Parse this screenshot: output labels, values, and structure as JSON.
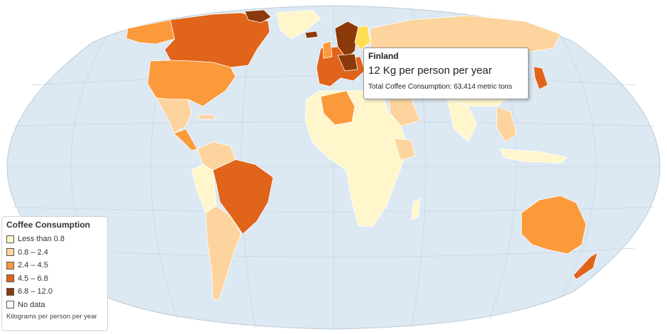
{
  "colors": {
    "ocean": "#dce8f2",
    "grid": "#c6d6e4",
    "less_than_0_8": "#fff6cc",
    "c_0_8_2_4": "#fdd49e",
    "c_2_4_4_5": "#fb9a3a",
    "c_4_5_6_8": "#e0641a",
    "c_6_8_12": "#8c3a0a",
    "highlight": "#ffdd55"
  },
  "legend": {
    "title": "Coffee Consumption",
    "items": [
      {
        "label": "Less than 0.8",
        "color": "#fff6cc"
      },
      {
        "label": "0.8 – 2.4",
        "color": "#fdd49e"
      },
      {
        "label": "2.4 – 4.5",
        "color": "#fb9a3a"
      },
      {
        "label": "4.5 – 6.8",
        "color": "#e0641a"
      },
      {
        "label": "6.8 – 12.0",
        "color": "#8c3a0a"
      },
      {
        "label": "No data",
        "color": "#ffffff"
      }
    ],
    "note": "Kilograms per person per year"
  },
  "tooltip": {
    "country": "Finland",
    "value_text": "12 Kg per person per year",
    "total_text": "Total Coffee Consumption: 63,414 metric tons"
  },
  "regions": [
    {
      "name": "Canada",
      "bin": 3
    },
    {
      "name": "United States",
      "bin": 2
    },
    {
      "name": "Greenland",
      "bin": 0
    },
    {
      "name": "Mexico",
      "bin": 1
    },
    {
      "name": "Brazil",
      "bin": 3
    },
    {
      "name": "Russia",
      "bin": 1
    },
    {
      "name": "Finland",
      "bin": 4
    },
    {
      "name": "Algeria",
      "bin": 2
    },
    {
      "name": "Australia",
      "bin": 2
    },
    {
      "name": "Japan",
      "bin": 2
    }
  ]
}
